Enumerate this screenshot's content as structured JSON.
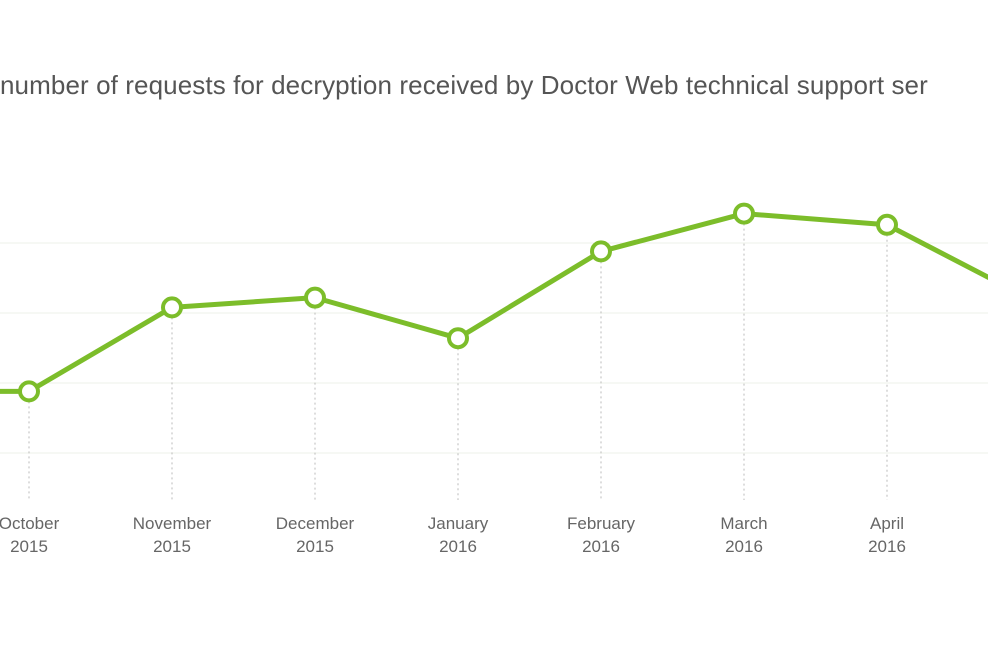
{
  "chart_data": {
    "type": "line",
    "title": "number of requests for decryption received by Doctor Web technical support ser",
    "xlabel": "",
    "ylabel": "",
    "categories": [
      [
        "October",
        "2015"
      ],
      [
        "November",
        "2015"
      ],
      [
        "December",
        "2015"
      ],
      [
        "January",
        "2016"
      ],
      [
        "February",
        "2016"
      ],
      [
        "March",
        "2016"
      ],
      [
        "April",
        "2016"
      ],
      [
        "",
        ""
      ]
    ],
    "series": [
      {
        "values": [
          1.88,
          3.08,
          3.22,
          2.64,
          3.88,
          4.42,
          4.26,
          3.2
        ]
      }
    ],
    "ylim": [
      0,
      5
    ],
    "y_gridlines": [
      1,
      2,
      3,
      4
    ],
    "grid": true,
    "legend": "none",
    "colors": {
      "line": "#7cbd2a",
      "marker_fill": "#ffffff",
      "grid": "#eef2e8",
      "drop_line": "#bbbbbb",
      "tick_label": "#666666",
      "title": "#555555"
    }
  }
}
